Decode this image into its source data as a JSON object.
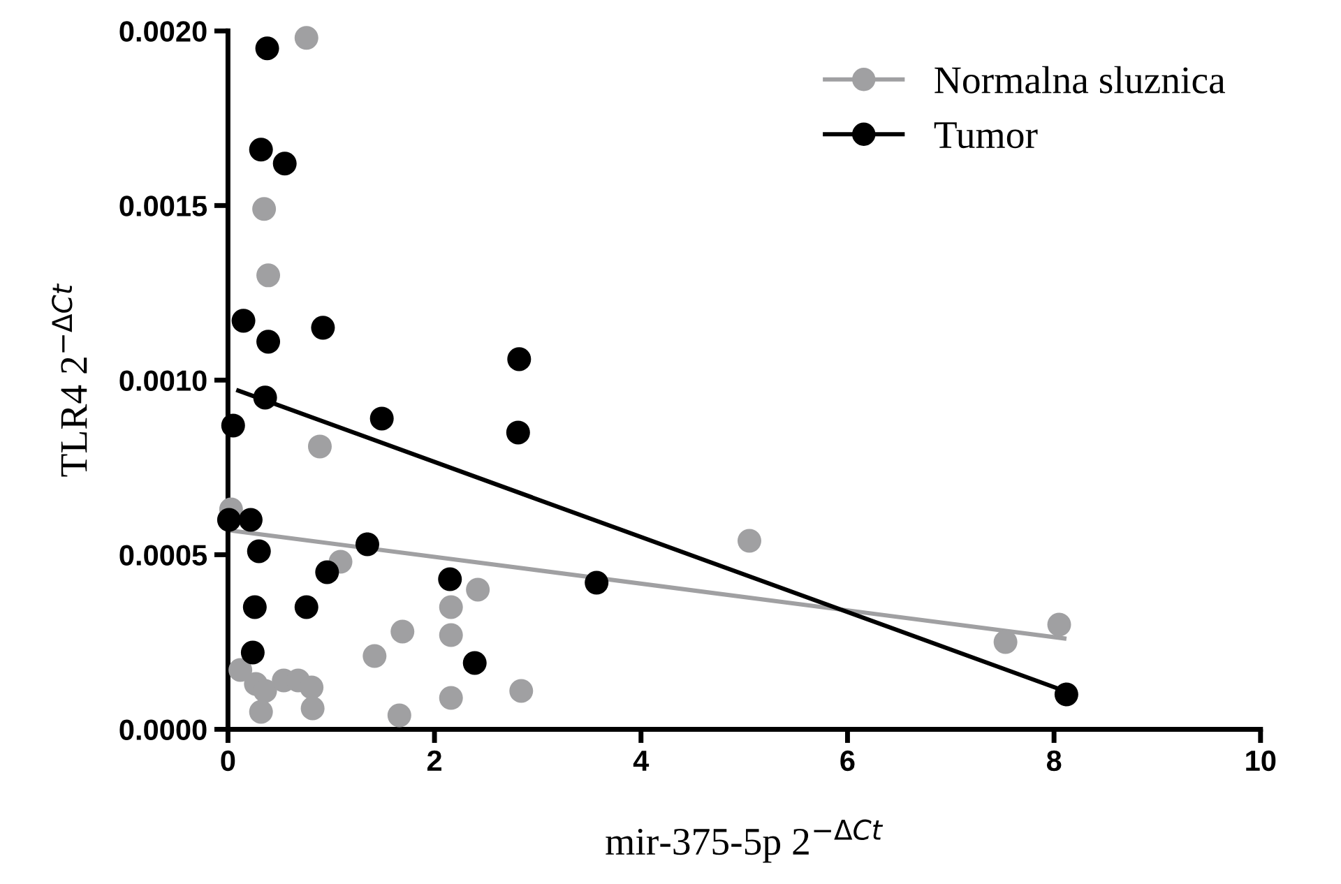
{
  "chart_data": {
    "type": "scatter",
    "xlabel": "mir-375-5p 2$^{−ΔCt}$",
    "ylabel": "TLR4 2$^{−ΔCt}$",
    "xlim": [
      0,
      10
    ],
    "xticks": [
      0,
      2,
      4,
      6,
      8,
      10
    ],
    "ylim": [
      0,
      0.002
    ],
    "yticks": [
      {
        "value": 0,
        "label": "0.0000"
      },
      {
        "value": 0.0005,
        "label": "0.0005"
      },
      {
        "value": 0.001,
        "label": "0.0010"
      },
      {
        "value": 0.0015,
        "label": "0.0015"
      },
      {
        "value": 0.002,
        "label": "0.0020"
      }
    ],
    "grid": false,
    "legend": "top right",
    "series": [
      {
        "name": "Normalna sluznica",
        "color": "#a0a0a2",
        "marker": "circle",
        "x": [
          0.76,
          0.35,
          0.39,
          0.89,
          0.03,
          1.09,
          5.05,
          2.42,
          2.16,
          2.16,
          1.69,
          1.42,
          0.12,
          0.27,
          0.36,
          0.32,
          0.54,
          0.68,
          0.81,
          0.82,
          1.66,
          2.16,
          2.84,
          7.53,
          8.05
        ],
        "values": [
          0.00198,
          0.00149,
          0.0013,
          0.00081,
          0.00063,
          0.00048,
          0.00054,
          0.0004,
          0.00035,
          0.00027,
          0.00028,
          0.00021,
          0.00017,
          0.00013,
          0.00011,
          5e-05,
          0.00014,
          0.00014,
          0.00012,
          6e-05,
          4e-05,
          9e-05,
          0.00011,
          0.00025,
          0.0003
        ]
      },
      {
        "name": "Tumor",
        "color": "#000000",
        "marker": "circle",
        "x": [
          0.38,
          0.32,
          0.55,
          0.15,
          0.39,
          0.92,
          0.05,
          0.36,
          1.49,
          2.82,
          2.81,
          0.01,
          0.22,
          0.3,
          1.35,
          0.96,
          2.15,
          3.57,
          0.26,
          0.76,
          0.24,
          2.39,
          8.12
        ],
        "values": [
          0.00195,
          0.00166,
          0.00162,
          0.00117,
          0.00111,
          0.00115,
          0.00087,
          0.00095,
          0.00089,
          0.00106,
          0.00085,
          0.0006,
          0.0006,
          0.00051,
          0.00053,
          0.00045,
          0.00043,
          0.00042,
          0.00035,
          0.00035,
          0.00022,
          0.00019,
          0.0001
        ]
      },
      {
        "color": "#a0a0a2",
        "type": "line",
        "x": [
          0.01,
          8.1
        ],
        "values": [
          0.00057,
          0.00026
        ]
      },
      {
        "color": "#000000",
        "type": "line",
        "x": [
          0.1,
          8.1
        ],
        "values": [
          0.00097,
          0.00011
        ]
      }
    ]
  }
}
